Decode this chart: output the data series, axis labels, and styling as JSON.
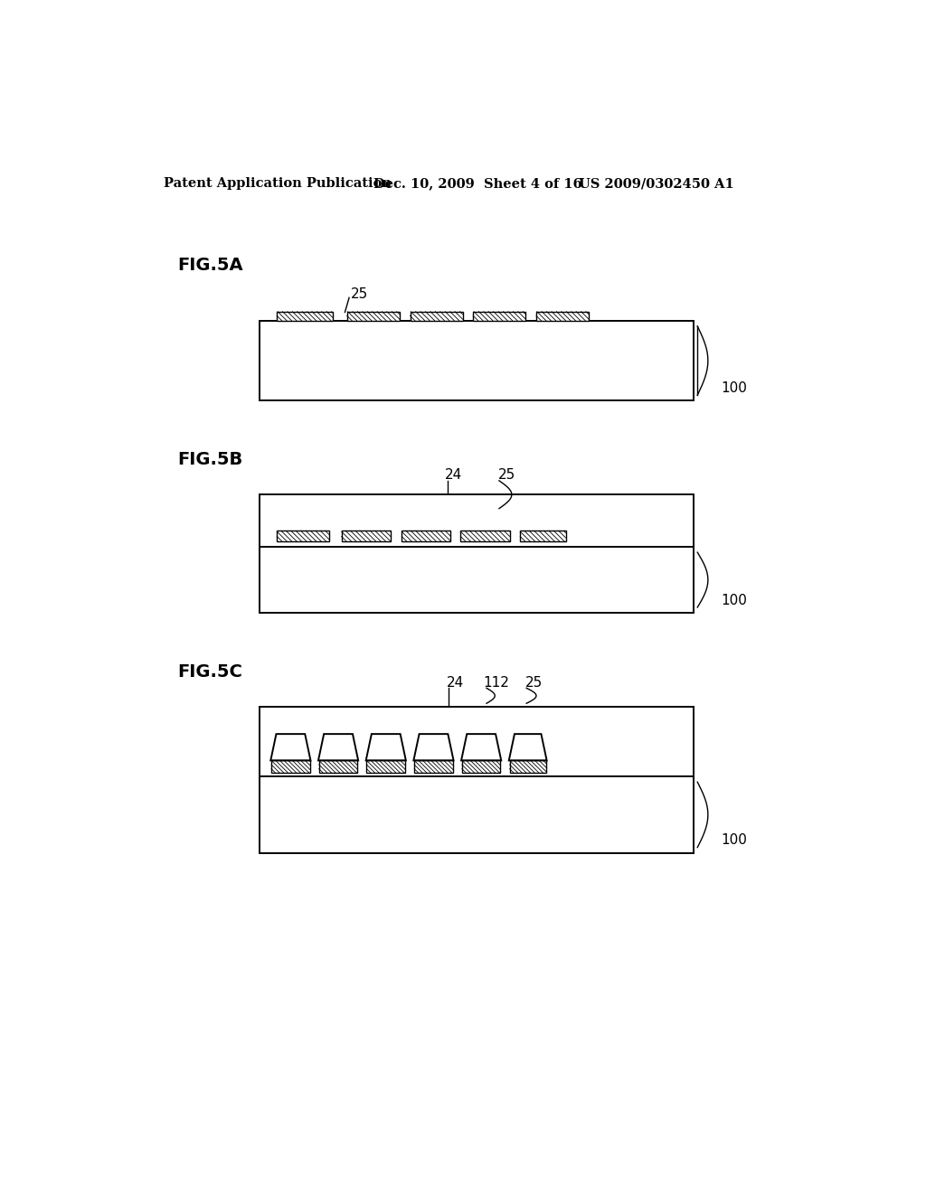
{
  "bg_color": "#ffffff",
  "header_left": "Patent Application Publication",
  "header_mid": "Dec. 10, 2009  Sheet 4 of 16",
  "header_right": "US 2009/0302450 A1",
  "fig_labels": [
    "FIG.5A",
    "FIG.5B",
    "FIG.5C"
  ],
  "label_25": "25",
  "label_24": "24",
  "label_100": "100",
  "label_112": "112",
  "line_color": "#000000",
  "lw": 1.4
}
